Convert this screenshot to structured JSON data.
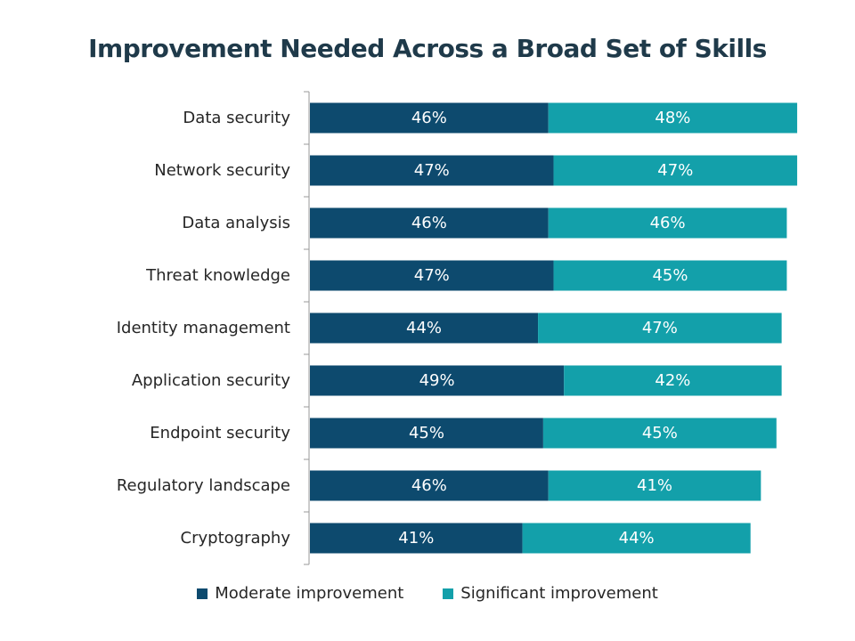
{
  "chart_data": {
    "type": "bar",
    "orientation": "horizontal",
    "stacked": true,
    "title": "Improvement Needed Across a Broad Set of Skills",
    "categories": [
      "Data security",
      "Network security",
      "Data analysis",
      "Threat knowledge",
      "Identity management",
      "Application security",
      "Endpoint security",
      "Regulatory landscape",
      "Cryptography"
    ],
    "series": [
      {
        "name": "Moderate improvement",
        "color": "#0d4a6e",
        "values": [
          46,
          47,
          46,
          47,
          44,
          49,
          45,
          46,
          41
        ],
        "labels": [
          "46%",
          "47%",
          "46%",
          "47%",
          "44%",
          "49%",
          "45%",
          "46%",
          "41%"
        ]
      },
      {
        "name": "Significant improvement",
        "color": "#13a0aa",
        "values": [
          48,
          47,
          46,
          45,
          47,
          42,
          45,
          41,
          44
        ],
        "labels": [
          "48%",
          "47%",
          "46%",
          "45%",
          "47%",
          "42%",
          "45%",
          "41%",
          "44%"
        ]
      }
    ],
    "xlim": [
      0,
      100
    ],
    "grid": false,
    "legend_position": "bottom"
  }
}
